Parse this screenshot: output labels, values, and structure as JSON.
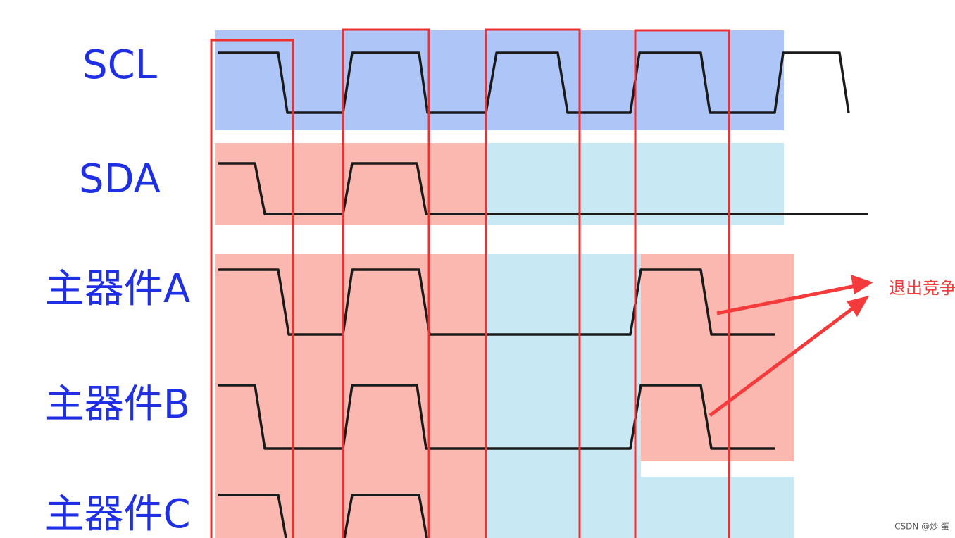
{
  "signals": [
    "SCL",
    "SDA",
    "主器件A",
    "主器件B",
    "主器件C"
  ],
  "annotation": "退出竞争",
  "watermark": "CSDN @炒 蛋"
}
